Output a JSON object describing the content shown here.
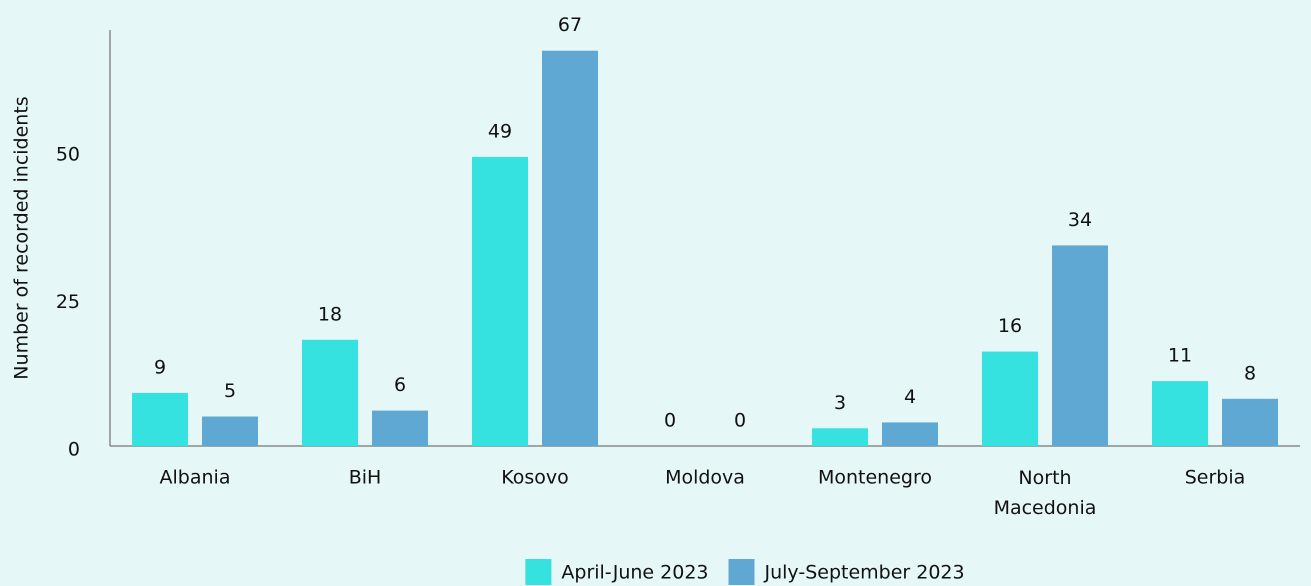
{
  "chart_data": {
    "type": "bar",
    "y_label": "Number of recorded incidents",
    "categories": [
      "Albania",
      "BiH",
      "Kosovo",
      "Moldova",
      "Montenegro",
      "North Macedonia",
      "Serbia"
    ],
    "series": [
      {
        "name": "April-June 2023",
        "color": "#36e2e0",
        "values": [
          9,
          18,
          49,
          0,
          3,
          16,
          11
        ]
      },
      {
        "name": "July-September 2023",
        "color": "#5fa8d3",
        "values": [
          5,
          6,
          67,
          0,
          4,
          34,
          8
        ]
      }
    ],
    "ylim": [
      0,
      70
    ],
    "yticks": [
      0,
      25,
      50
    ],
    "grid": false,
    "legend": "bottom"
  }
}
